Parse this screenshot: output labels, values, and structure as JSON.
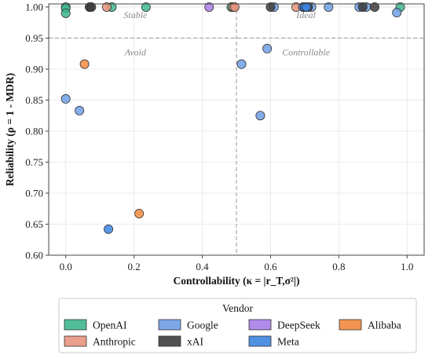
{
  "chart_data": {
    "type": "scatter",
    "xlabel": "Controllability (κ = |r_T,σ²|)",
    "ylabel": "Reliability (ρ = 1 - MDR)",
    "xlim": [
      -0.05,
      1.05
    ],
    "ylim": [
      0.6,
      1.005
    ],
    "x_ticks": [
      "0.0",
      "0.2",
      "0.4",
      "0.6",
      "0.8",
      "1.0"
    ],
    "x_tick_values": [
      0.0,
      0.2,
      0.4,
      0.6,
      0.8,
      1.0
    ],
    "y_ticks": [
      "0.60",
      "0.65",
      "0.70",
      "0.75",
      "0.80",
      "0.85",
      "0.90",
      "0.95",
      "1.00"
    ],
    "y_tick_values": [
      0.6,
      0.65,
      0.7,
      0.75,
      0.8,
      0.85,
      0.9,
      0.95,
      1.0
    ],
    "grid": true,
    "thresholds": {
      "x": 0.5,
      "y": 0.95
    },
    "region_labels": [
      {
        "text": "Stable",
        "x": 0.25,
        "y": 0.982
      },
      {
        "text": "Ideal",
        "x": 0.75,
        "y": 0.982
      },
      {
        "text": "Avoid",
        "x": 0.25,
        "y": 0.922
      },
      {
        "text": "Controllable",
        "x": 0.75,
        "y": 0.922
      }
    ],
    "legend": {
      "title": "Vendor",
      "placement": "bottom-center"
    },
    "series": [
      {
        "name": "OpenAI",
        "color": "#3fb68e",
        "points": [
          [
            0.0,
            1.0
          ],
          [
            0.0,
            0.998
          ],
          [
            0.0,
            0.99
          ],
          [
            0.07,
            1.0
          ],
          [
            0.135,
            1.0
          ],
          [
            0.235,
            1.0
          ],
          [
            0.485,
            1.0
          ],
          [
            0.98,
            1.0
          ]
        ]
      },
      {
        "name": "Anthropic",
        "color": "#e8937e",
        "points": [
          [
            0.12,
            1.0
          ],
          [
            0.49,
            1.0
          ],
          [
            0.495,
            1.0
          ],
          [
            0.675,
            1.0
          ]
        ]
      },
      {
        "name": "Google",
        "color": "#6f9fe6",
        "points": [
          [
            0.0,
            0.852
          ],
          [
            0.04,
            0.833
          ],
          [
            0.515,
            0.908
          ],
          [
            0.57,
            0.825
          ],
          [
            0.59,
            0.933
          ],
          [
            0.61,
            1.0
          ],
          [
            0.72,
            1.0
          ],
          [
            0.77,
            1.0
          ],
          [
            0.86,
            1.0
          ],
          [
            0.88,
            1.0
          ],
          [
            0.97,
            0.991
          ]
        ]
      },
      {
        "name": "xAI",
        "color": "#3d3d3d",
        "points": [
          [
            0.07,
            1.0
          ],
          [
            0.075,
            1.0
          ],
          [
            0.6,
            1.0
          ],
          [
            0.7,
            1.0
          ],
          [
            0.71,
            1.0
          ],
          [
            0.87,
            1.0
          ],
          [
            0.905,
            1.0
          ]
        ]
      },
      {
        "name": "DeepSeek",
        "color": "#a87de8",
        "points": [
          [
            0.42,
            1.0
          ]
        ]
      },
      {
        "name": "Meta",
        "color": "#3c84e0",
        "points": [
          [
            0.125,
            0.642
          ],
          [
            0.695,
            1.0
          ],
          [
            0.7,
            1.0
          ],
          [
            0.705,
            1.0
          ]
        ]
      },
      {
        "name": "Alibaba",
        "color": "#f2893e",
        "points": [
          [
            0.055,
            0.908
          ],
          [
            0.215,
            0.667
          ]
        ]
      }
    ],
    "legend_order": [
      "OpenAI",
      "Google",
      "DeepSeek",
      "Alibaba",
      "Anthropic",
      "xAI",
      "Meta"
    ]
  }
}
